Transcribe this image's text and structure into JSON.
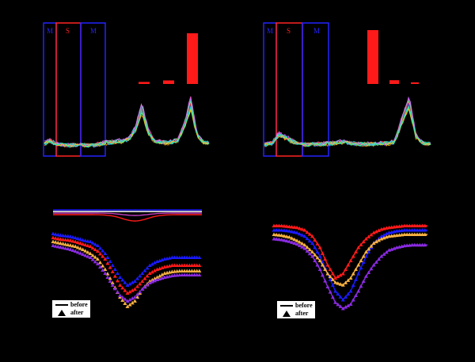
{
  "panels": {
    "top_left": {
      "region_labels": [
        "M",
        "S",
        "M"
      ],
      "bar_heights": [
        0.04,
        0.07,
        1.0
      ],
      "peaks": [
        0.42,
        0.9
      ]
    },
    "top_right": {
      "region_labels": [
        "M",
        "S",
        "M"
      ],
      "bar_heights": [
        1.0,
        0.07,
        0.03
      ],
      "peaks": [
        0.8
      ]
    },
    "bottom_left": {
      "legend": {
        "before": "before",
        "after": "after"
      }
    },
    "bottom_right": {
      "legend": {
        "before": "before",
        "after": "after"
      }
    }
  },
  "colors": {
    "blue": "#1a1aff",
    "red": "#ff1a1a",
    "purple": "#8a2be2",
    "orange": "#f5b041",
    "magenta": "#c040c0",
    "white": "#ffffff"
  },
  "chart_data": [
    {
      "type": "line",
      "panel": "top_left",
      "series": [
        {
          "values": [
            0.06,
            0.1,
            0.05,
            0.04,
            0.03,
            0.03,
            0.04,
            0.03,
            0.03,
            0.05,
            0.07,
            0.08,
            0.09,
            0.1,
            0.14,
            0.3,
            0.62,
            0.25,
            0.1,
            0.08,
            0.07,
            0.08,
            0.12,
            0.35,
            0.68,
            0.2,
            0.08,
            0.06
          ]
        }
      ]
    },
    {
      "type": "line",
      "panel": "top_right",
      "series": [
        {
          "values": [
            0.04,
            0.06,
            0.2,
            0.15,
            0.08,
            0.05,
            0.04,
            0.05,
            0.05,
            0.06,
            0.07,
            0.09,
            0.06,
            0.05,
            0.05,
            0.05,
            0.06,
            0.06,
            0.08,
            0.4,
            0.7,
            0.15,
            0.06,
            0.05
          ]
        }
      ]
    },
    {
      "type": "line",
      "panel": "bottom_left",
      "x": [
        0,
        1,
        2,
        3,
        4,
        5,
        6,
        7,
        8,
        9,
        10,
        11,
        12,
        13,
        14,
        15,
        16,
        17,
        18,
        19,
        20
      ],
      "series": [
        {
          "color": "blue",
          "values": [
            0.2,
            0.18,
            0.17,
            0.15,
            0.12,
            0.1,
            0.05,
            -0.05,
            -0.2,
            -0.35,
            -0.45,
            -0.4,
            -0.3,
            -0.2,
            -0.15,
            -0.12,
            -0.1,
            -0.1,
            -0.1,
            -0.1,
            -0.1
          ]
        },
        {
          "color": "red",
          "values": [
            0.15,
            0.13,
            0.12,
            0.1,
            0.07,
            0.04,
            -0.02,
            -0.12,
            -0.28,
            -0.45,
            -0.55,
            -0.5,
            -0.4,
            -0.3,
            -0.25,
            -0.22,
            -0.2,
            -0.2,
            -0.2,
            -0.2,
            -0.2
          ]
        },
        {
          "color": "orange",
          "values": [
            0.1,
            0.08,
            0.06,
            0.04,
            0.0,
            -0.05,
            -0.12,
            -0.25,
            -0.42,
            -0.6,
            -0.72,
            -0.65,
            -0.5,
            -0.4,
            -0.35,
            -0.3,
            -0.28,
            -0.27,
            -0.27,
            -0.27,
            -0.27
          ]
        },
        {
          "color": "purple",
          "values": [
            0.05,
            0.03,
            0.01,
            -0.02,
            -0.06,
            -0.1,
            -0.18,
            -0.3,
            -0.45,
            -0.58,
            -0.65,
            -0.6,
            -0.5,
            -0.42,
            -0.38,
            -0.35,
            -0.33,
            -0.32,
            -0.32,
            -0.32,
            -0.32
          ]
        }
      ]
    },
    {
      "type": "line",
      "panel": "bottom_right",
      "x": [
        0,
        1,
        2,
        3,
        4,
        5,
        6,
        7,
        8,
        9,
        10,
        11,
        12,
        13,
        14,
        15,
        16,
        17,
        18,
        19,
        20
      ],
      "series": [
        {
          "color": "red",
          "values": [
            0.3,
            0.3,
            0.29,
            0.28,
            0.25,
            0.18,
            0.05,
            -0.15,
            -0.3,
            -0.25,
            -0.1,
            0.05,
            0.15,
            0.22,
            0.26,
            0.28,
            0.29,
            0.3,
            0.3,
            0.3,
            0.3
          ]
        },
        {
          "color": "blue",
          "values": [
            0.25,
            0.25,
            0.24,
            0.22,
            0.18,
            0.1,
            -0.05,
            -0.25,
            -0.45,
            -0.55,
            -0.45,
            -0.25,
            -0.05,
            0.1,
            0.18,
            0.22,
            0.24,
            0.25,
            0.25,
            0.25,
            0.25
          ]
        },
        {
          "color": "orange",
          "values": [
            0.2,
            0.19,
            0.17,
            0.13,
            0.08,
            0.0,
            -0.1,
            -0.25,
            -0.35,
            -0.38,
            -0.3,
            -0.15,
            0.0,
            0.1,
            0.15,
            0.18,
            0.19,
            0.2,
            0.2,
            0.2,
            0.2
          ]
        },
        {
          "color": "purple",
          "values": [
            0.15,
            0.14,
            0.12,
            0.09,
            0.04,
            -0.05,
            -0.2,
            -0.4,
            -0.58,
            -0.65,
            -0.6,
            -0.45,
            -0.28,
            -0.15,
            -0.05,
            0.02,
            0.05,
            0.07,
            0.08,
            0.08,
            0.08
          ]
        }
      ]
    }
  ]
}
